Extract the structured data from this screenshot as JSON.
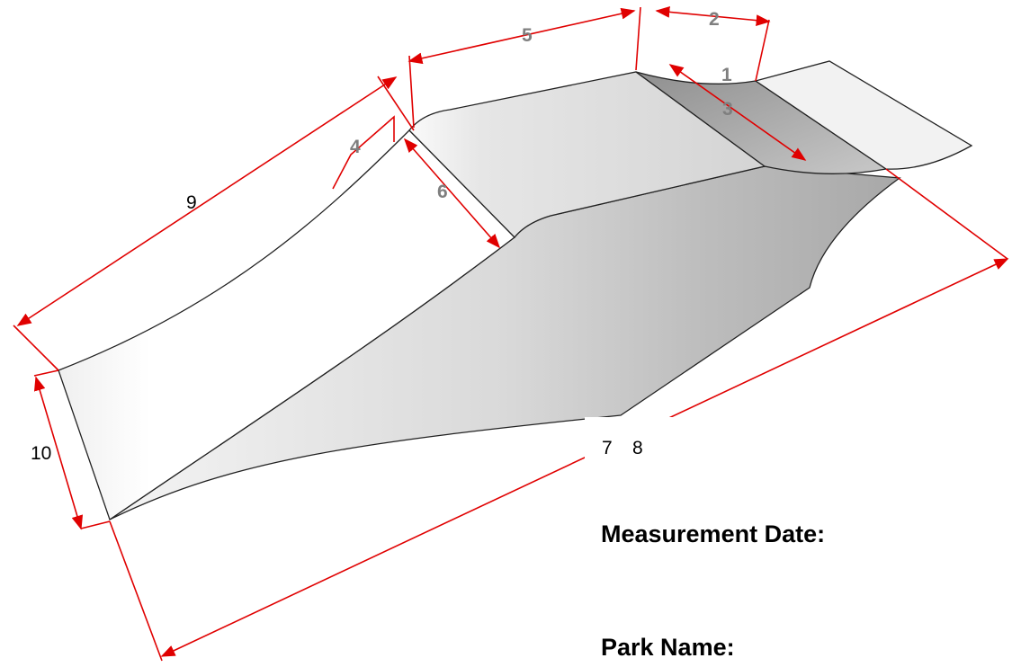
{
  "dimension_labels": [
    "1",
    "2",
    "3",
    "4",
    "5",
    "6",
    "7",
    "8",
    "9",
    "10"
  ],
  "form_fields": [
    "Measurement Date:",
    "Park Name:"
  ]
}
